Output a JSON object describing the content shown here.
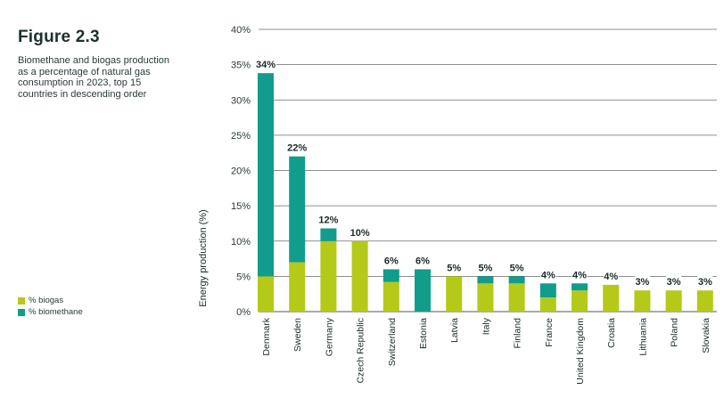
{
  "figure": {
    "title": "Figure 2.3",
    "description": "Biomethane and biogas production as a percentage of natural gas consumption in 2023, top 15 countries in descending order"
  },
  "legend": [
    {
      "label": "% biogas",
      "color": "#b5c918"
    },
    {
      "label": "% biomethane",
      "color": "#119c8c"
    }
  ],
  "chart_data": {
    "type": "bar",
    "stacked": true,
    "ylabel": "Energy production (%)",
    "ylim": [
      0,
      40
    ],
    "yticks": [
      0,
      5,
      10,
      15,
      20,
      25,
      30,
      35,
      40
    ],
    "yticklabels": [
      "0%",
      "5%",
      "10%",
      "15%",
      "20%",
      "25%",
      "30%",
      "35%",
      "40%"
    ],
    "grid": true,
    "legend_position": "bottom-left",
    "categories": [
      "Denmark",
      "Sweden",
      "Germany",
      "Czech Republic",
      "Switzerland",
      "Estonia",
      "Latvia",
      "Italy",
      "Finland",
      "France",
      "United Kingdom",
      "Croatia",
      "Lithuania",
      "Poland",
      "Slovakia"
    ],
    "series": [
      {
        "name": "% biogas",
        "color": "#b5c918",
        "values": [
          5,
          7,
          10,
          10,
          4.2,
          0,
          5,
          4,
          4,
          2,
          3,
          3.8,
          3,
          3,
          3
        ]
      },
      {
        "name": "% biomethane",
        "color": "#119c8c",
        "values": [
          28.8,
          15,
          1.8,
          0,
          1.8,
          6,
          0,
          1,
          1,
          2,
          1,
          0,
          0,
          0,
          0
        ]
      }
    ],
    "data_labels": [
      "34%",
      "22%",
      "12%",
      "10%",
      "6%",
      "6%",
      "5%",
      "5%",
      "5%",
      "4%",
      "4%",
      "4%",
      "3%",
      "3%",
      "3%"
    ]
  }
}
